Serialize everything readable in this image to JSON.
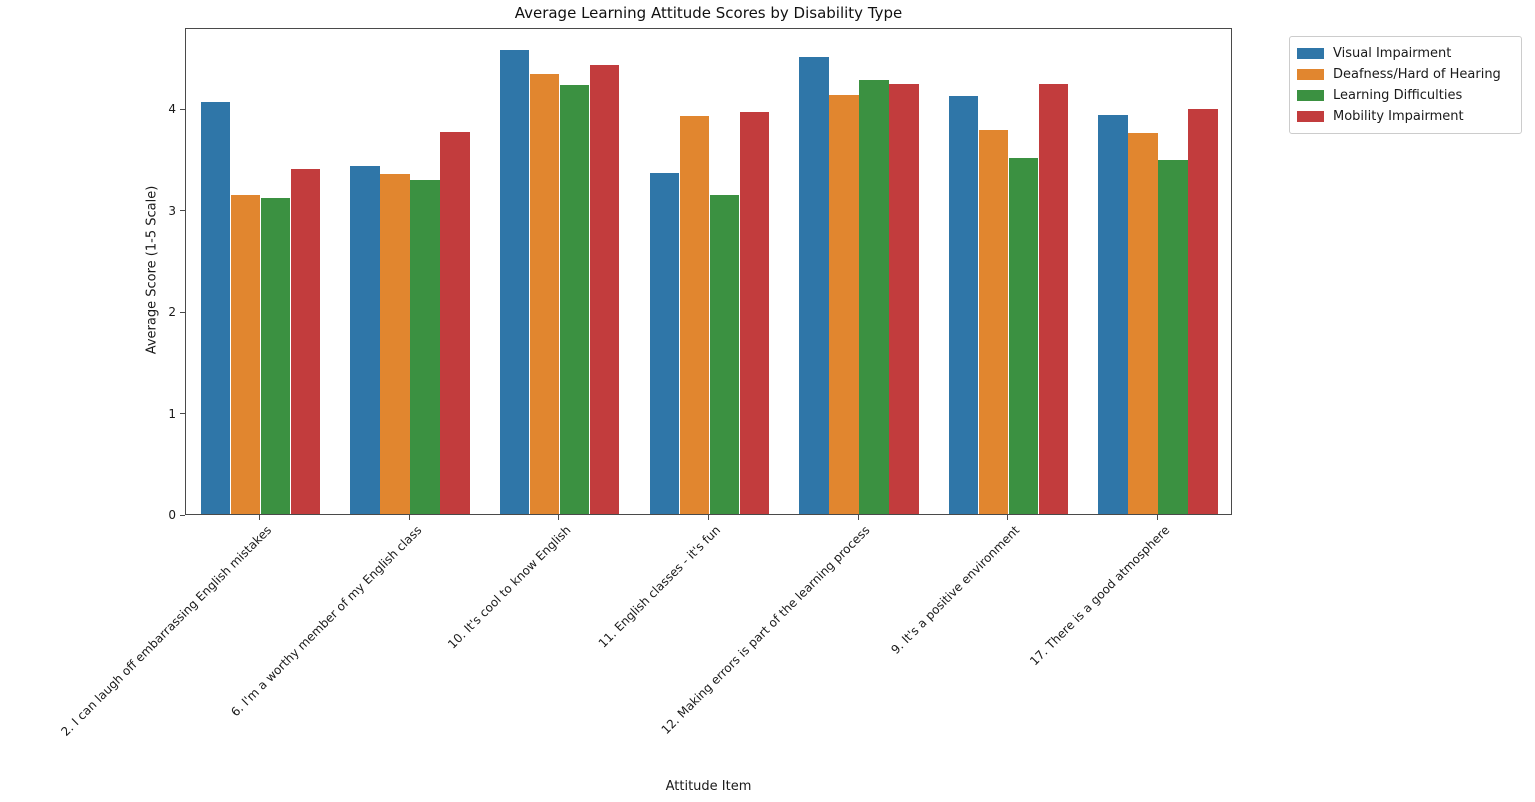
{
  "chart_data": {
    "type": "bar",
    "title": "Average Learning Attitude Scores by Disability Type",
    "xlabel": "Attitude Item",
    "ylabel": "Average Score (1-5 Scale)",
    "ylim": [
      0,
      4.8
    ],
    "yticks": [
      0,
      1,
      2,
      3,
      4
    ],
    "grid": false,
    "legend_position": "outside upper right",
    "categories": [
      "2. I can laugh off embarrassing English mistakes",
      "6. I'm a worthy member of my English class",
      "10. It's cool to know English",
      "11. English classes - it's fun",
      "12. Making errors is part of the learning process",
      "9. It's a positive environment",
      "17. There is a good atmosphere"
    ],
    "series": [
      {
        "name": "Visual Impairment",
        "color": "#2f76a8",
        "values": [
          4.07,
          3.44,
          4.58,
          3.37,
          4.51,
          4.13,
          3.94
        ]
      },
      {
        "name": "Deafness/Hard of Hearing",
        "color": "#e1862f",
        "values": [
          3.15,
          3.36,
          4.35,
          3.93,
          4.14,
          3.79,
          3.77
        ]
      },
      {
        "name": "Learning Difficulties",
        "color": "#3b9141",
        "values": [
          3.12,
          3.3,
          4.24,
          3.15,
          4.29,
          3.52,
          3.5
        ]
      },
      {
        "name": "Mobility Impairment",
        "color": "#c23c3d",
        "values": [
          3.41,
          3.78,
          4.44,
          3.97,
          4.25,
          4.25,
          4.0
        ]
      }
    ]
  }
}
